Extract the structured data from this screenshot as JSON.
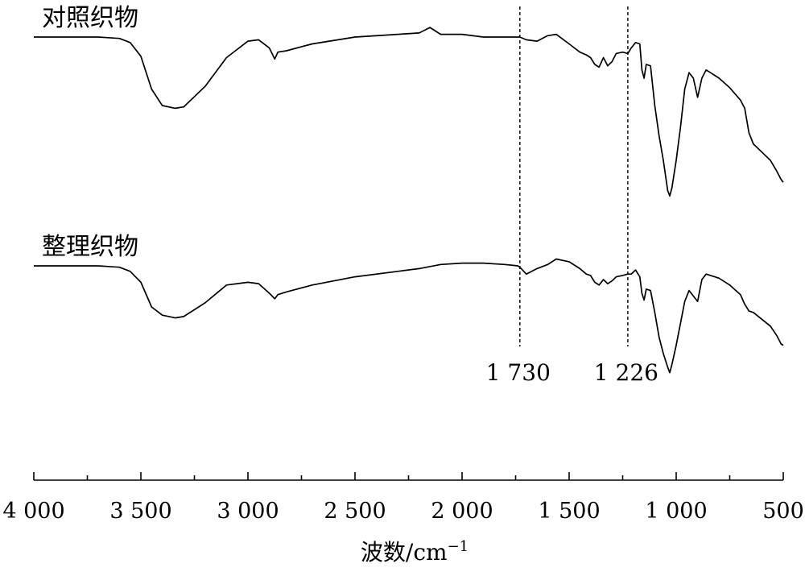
{
  "chart_data": {
    "type": "line",
    "xlabel": "波数/cm",
    "xlabel_sup": "−1",
    "xlim": [
      4000,
      500
    ],
    "x_reversed": true,
    "y_axis_visible": false,
    "grid": false,
    "x_ticks": [
      4000,
      3500,
      3000,
      2500,
      2000,
      1500,
      1000,
      500
    ],
    "x_tick_labels": [
      "4 000",
      "3 500",
      "3 000",
      "2 500",
      "2 000",
      "1 500",
      "1 000",
      "500"
    ],
    "x_minor_ticks": [
      3750,
      3250,
      2750,
      2250,
      1750,
      1250,
      750
    ],
    "y_unit": "transmittance (relative)",
    "annotations": [
      {
        "x": 1730,
        "label": "1 730"
      },
      {
        "x": 1226,
        "label": "1 226"
      }
    ],
    "series": [
      {
        "name": "对照织物",
        "points": [
          [
            4000,
            0.0
          ],
          [
            3800,
            0.0
          ],
          [
            3700,
            0.0
          ],
          [
            3600,
            -0.05
          ],
          [
            3550,
            -0.2
          ],
          [
            3500,
            -0.7
          ],
          [
            3450,
            -1.9
          ],
          [
            3400,
            -2.5
          ],
          [
            3340,
            -2.6
          ],
          [
            3300,
            -2.55
          ],
          [
            3200,
            -1.8
          ],
          [
            3100,
            -0.75
          ],
          [
            3000,
            -0.15
          ],
          [
            2950,
            -0.1
          ],
          [
            2900,
            -0.4
          ],
          [
            2875,
            -0.8
          ],
          [
            2860,
            -0.55
          ],
          [
            2820,
            -0.5
          ],
          [
            2700,
            -0.25
          ],
          [
            2500,
            0.0
          ],
          [
            2300,
            0.1
          ],
          [
            2200,
            0.15
          ],
          [
            2150,
            0.35
          ],
          [
            2100,
            0.1
          ],
          [
            2000,
            0.1
          ],
          [
            1900,
            0.0
          ],
          [
            1800,
            0.0
          ],
          [
            1740,
            0.0
          ],
          [
            1730,
            0.0
          ],
          [
            1700,
            -0.1
          ],
          [
            1650,
            -0.15
          ],
          [
            1600,
            0.05
          ],
          [
            1560,
            0.1
          ],
          [
            1500,
            -0.25
          ],
          [
            1450,
            -0.55
          ],
          [
            1420,
            -0.65
          ],
          [
            1400,
            -0.75
          ],
          [
            1380,
            -1.0
          ],
          [
            1360,
            -1.1
          ],
          [
            1340,
            -0.75
          ],
          [
            1320,
            -1.05
          ],
          [
            1300,
            -0.9
          ],
          [
            1280,
            -0.6
          ],
          [
            1250,
            -0.55
          ],
          [
            1226,
            -0.6
          ],
          [
            1210,
            -0.4
          ],
          [
            1190,
            -0.2
          ],
          [
            1170,
            -0.25
          ],
          [
            1160,
            -1.2
          ],
          [
            1150,
            -1.5
          ],
          [
            1140,
            -1.0
          ],
          [
            1120,
            -1.05
          ],
          [
            1100,
            -2.5
          ],
          [
            1080,
            -3.6
          ],
          [
            1060,
            -4.5
          ],
          [
            1040,
            -5.6
          ],
          [
            1030,
            -5.8
          ],
          [
            1020,
            -5.5
          ],
          [
            1000,
            -4.5
          ],
          [
            980,
            -3.3
          ],
          [
            960,
            -1.9
          ],
          [
            940,
            -1.3
          ],
          [
            920,
            -1.5
          ],
          [
            900,
            -2.2
          ],
          [
            880,
            -1.5
          ],
          [
            860,
            -1.2
          ],
          [
            840,
            -1.3
          ],
          [
            800,
            -1.5
          ],
          [
            750,
            -1.85
          ],
          [
            700,
            -2.3
          ],
          [
            680,
            -2.6
          ],
          [
            660,
            -3.5
          ],
          [
            640,
            -3.9
          ],
          [
            600,
            -4.2
          ],
          [
            560,
            -4.5
          ],
          [
            530,
            -4.9
          ],
          [
            510,
            -5.2
          ],
          [
            500,
            -5.3
          ]
        ]
      },
      {
        "name": "整理织物",
        "points": [
          [
            4000,
            0.0
          ],
          [
            3800,
            0.0
          ],
          [
            3700,
            0.0
          ],
          [
            3600,
            -0.05
          ],
          [
            3550,
            -0.2
          ],
          [
            3500,
            -0.6
          ],
          [
            3450,
            -1.5
          ],
          [
            3400,
            -1.8
          ],
          [
            3340,
            -1.9
          ],
          [
            3300,
            -1.85
          ],
          [
            3200,
            -1.35
          ],
          [
            3100,
            -0.7
          ],
          [
            3000,
            -0.6
          ],
          [
            2950,
            -0.65
          ],
          [
            2900,
            -1.0
          ],
          [
            2875,
            -1.2
          ],
          [
            2860,
            -1.05
          ],
          [
            2820,
            -0.95
          ],
          [
            2700,
            -0.7
          ],
          [
            2500,
            -0.4
          ],
          [
            2300,
            -0.2
          ],
          [
            2200,
            -0.1
          ],
          [
            2100,
            0.05
          ],
          [
            2000,
            0.1
          ],
          [
            1900,
            0.1
          ],
          [
            1800,
            0.05
          ],
          [
            1740,
            0.0
          ],
          [
            1730,
            -0.05
          ],
          [
            1700,
            -0.3
          ],
          [
            1650,
            -0.1
          ],
          [
            1600,
            0.05
          ],
          [
            1560,
            0.25
          ],
          [
            1500,
            0.15
          ],
          [
            1450,
            -0.1
          ],
          [
            1420,
            -0.3
          ],
          [
            1400,
            -0.35
          ],
          [
            1380,
            -0.6
          ],
          [
            1360,
            -0.7
          ],
          [
            1340,
            -0.5
          ],
          [
            1320,
            -0.65
          ],
          [
            1300,
            -0.55
          ],
          [
            1280,
            -0.4
          ],
          [
            1250,
            -0.35
          ],
          [
            1226,
            -0.3
          ],
          [
            1210,
            -0.3
          ],
          [
            1190,
            -0.15
          ],
          [
            1170,
            -0.4
          ],
          [
            1160,
            -1.0
          ],
          [
            1150,
            -1.25
          ],
          [
            1140,
            -0.85
          ],
          [
            1120,
            -0.9
          ],
          [
            1100,
            -1.7
          ],
          [
            1080,
            -2.6
          ],
          [
            1060,
            -3.2
          ],
          [
            1040,
            -3.7
          ],
          [
            1030,
            -3.9
          ],
          [
            1020,
            -3.6
          ],
          [
            1000,
            -2.9
          ],
          [
            980,
            -2.1
          ],
          [
            960,
            -1.3
          ],
          [
            940,
            -0.9
          ],
          [
            920,
            -1.1
          ],
          [
            900,
            -1.3
          ],
          [
            880,
            -0.5
          ],
          [
            860,
            -0.3
          ],
          [
            840,
            -0.35
          ],
          [
            800,
            -0.45
          ],
          [
            750,
            -0.7
          ],
          [
            700,
            -1.05
          ],
          [
            680,
            -1.4
          ],
          [
            660,
            -1.65
          ],
          [
            640,
            -1.7
          ],
          [
            600,
            -1.95
          ],
          [
            560,
            -2.2
          ],
          [
            530,
            -2.55
          ],
          [
            510,
            -2.85
          ],
          [
            500,
            -2.9
          ]
        ]
      }
    ]
  }
}
